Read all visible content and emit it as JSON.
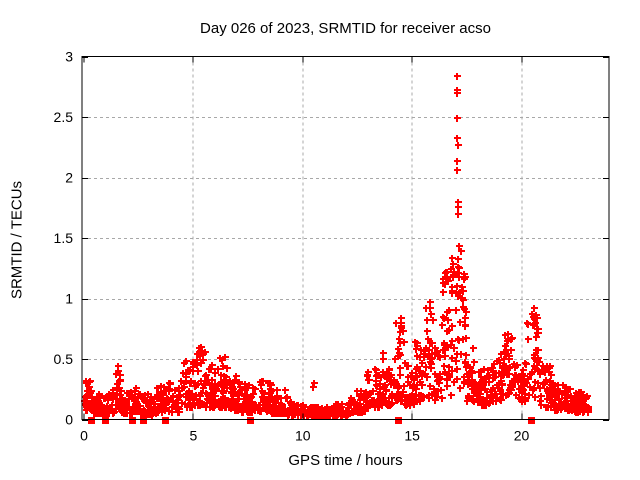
{
  "chart_data": {
    "type": "scatter",
    "title": "Day 026 of 2023, SRMTID for receiver acso",
    "xlabel": "GPS time / hours",
    "ylabel": "SRMTID / TECUs",
    "xlim": [
      0,
      24
    ],
    "ylim": [
      0,
      3
    ],
    "xticks": [
      [
        0,
        "0"
      ],
      [
        5,
        "5"
      ],
      [
        10,
        "10"
      ],
      [
        15,
        "15"
      ],
      [
        20,
        "20"
      ]
    ],
    "yticks": [
      [
        0,
        "0"
      ],
      [
        0.5,
        "0.5"
      ],
      [
        1,
        "1"
      ],
      [
        1.5,
        "1.5"
      ],
      [
        2,
        "2"
      ],
      [
        2.5,
        "2.5"
      ],
      [
        3,
        "3"
      ]
    ],
    "grid": true,
    "legend": "none",
    "marker": "plus-cross",
    "marker_color": "#ff0000",
    "grid_color": "#a8a8a8",
    "axis_color": "#000000",
    "series_name": "SRMTID for receiver acso",
    "point_cloud_segments_format": "[hour_start, hour_end, point_count, value_low, value_high, low_bias_exponent] — dense noisy band read from plot",
    "point_cloud_segments": [
      [
        0.0,
        0.3,
        25,
        0.08,
        0.36,
        1.8
      ],
      [
        0.3,
        1.0,
        52,
        0.05,
        0.28,
        2.0
      ],
      [
        1.0,
        1.45,
        30,
        0.05,
        0.25,
        2.0
      ],
      [
        1.45,
        1.7,
        20,
        0.08,
        0.42,
        1.5
      ],
      [
        1.7,
        2.3,
        40,
        0.05,
        0.24,
        2.0
      ],
      [
        2.3,
        2.6,
        22,
        0.07,
        0.3,
        1.7
      ],
      [
        2.6,
        3.3,
        46,
        0.04,
        0.22,
        2.0
      ],
      [
        3.3,
        4.35,
        65,
        0.06,
        0.32,
        1.9
      ],
      [
        4.35,
        5.1,
        45,
        0.1,
        0.5,
        1.6
      ],
      [
        5.1,
        5.55,
        36,
        0.12,
        0.6,
        1.5
      ],
      [
        5.55,
        6.1,
        40,
        0.1,
        0.5,
        1.6
      ],
      [
        6.1,
        6.6,
        36,
        0.1,
        0.52,
        1.6
      ],
      [
        6.6,
        7.2,
        42,
        0.08,
        0.36,
        1.8
      ],
      [
        7.2,
        7.9,
        48,
        0.06,
        0.3,
        1.9
      ],
      [
        7.9,
        8.6,
        48,
        0.07,
        0.32,
        1.8
      ],
      [
        8.6,
        9.3,
        46,
        0.05,
        0.25,
        2.0
      ],
      [
        9.3,
        10.05,
        50,
        0.04,
        0.15,
        2.0
      ],
      [
        10.05,
        11.2,
        75,
        0.03,
        0.11,
        2.0
      ],
      [
        11.2,
        12.2,
        68,
        0.04,
        0.14,
        2.0
      ],
      [
        12.2,
        12.9,
        48,
        0.06,
        0.24,
        1.8
      ],
      [
        12.9,
        13.6,
        46,
        0.1,
        0.42,
        1.6
      ],
      [
        13.6,
        14.25,
        44,
        0.12,
        0.55,
        1.5
      ],
      [
        14.25,
        14.65,
        30,
        0.15,
        0.82,
        1.3
      ],
      [
        14.65,
        15.1,
        32,
        0.12,
        0.5,
        1.6
      ],
      [
        15.1,
        15.6,
        34,
        0.15,
        0.65,
        1.5
      ],
      [
        15.6,
        16.0,
        28,
        0.18,
        0.95,
        1.3
      ],
      [
        16.0,
        16.35,
        25,
        0.15,
        0.6,
        1.5
      ],
      [
        16.35,
        16.8,
        34,
        0.2,
        1.25,
        1.2
      ],
      [
        16.8,
        17.45,
        50,
        0.25,
        1.4,
        1.1
      ],
      [
        17.45,
        17.9,
        32,
        0.15,
        0.6,
        1.5
      ],
      [
        17.9,
        18.6,
        46,
        0.12,
        0.42,
        1.7
      ],
      [
        18.6,
        19.15,
        38,
        0.15,
        0.55,
        1.5
      ],
      [
        19.15,
        19.6,
        32,
        0.2,
        0.7,
        1.4
      ],
      [
        19.6,
        20.2,
        40,
        0.15,
        0.48,
        1.6
      ],
      [
        20.2,
        20.8,
        40,
        0.18,
        0.9,
        1.3
      ],
      [
        20.8,
        21.5,
        46,
        0.1,
        0.45,
        1.7
      ],
      [
        21.5,
        22.4,
        58,
        0.08,
        0.3,
        1.9
      ],
      [
        22.4,
        23.05,
        50,
        0.06,
        0.26,
        1.9
      ]
    ],
    "outlier_points": [
      [
        17.05,
        2.84
      ],
      [
        17.06,
        2.72
      ],
      [
        17.07,
        2.7
      ],
      [
        17.05,
        2.49
      ],
      [
        17.06,
        2.33
      ],
      [
        17.08,
        2.27
      ],
      [
        17.05,
        2.14
      ],
      [
        17.07,
        2.06
      ],
      [
        17.08,
        1.8
      ],
      [
        17.1,
        1.76
      ],
      [
        17.09,
        1.7
      ],
      [
        17.12,
        1.43
      ],
      [
        17.1,
        1.33
      ],
      [
        17.13,
        1.25
      ],
      [
        17.15,
        1.18
      ],
      [
        17.07,
        1.1
      ],
      [
        17.18,
        1.05
      ],
      [
        16.5,
        1.12
      ],
      [
        16.55,
        1.22
      ],
      [
        16.6,
        1.18
      ],
      [
        15.8,
        0.97
      ],
      [
        15.82,
        0.92
      ],
      [
        14.5,
        0.84
      ],
      [
        14.48,
        0.8
      ],
      [
        20.55,
        0.92
      ],
      [
        20.5,
        0.87
      ],
      [
        20.58,
        0.83
      ],
      [
        19.4,
        0.71
      ],
      [
        10.5,
        0.3
      ],
      [
        10.45,
        0.27
      ],
      [
        5.35,
        0.6
      ],
      [
        5.3,
        0.57
      ],
      [
        6.45,
        0.52
      ],
      [
        1.55,
        0.44
      ],
      [
        1.57,
        0.4
      ]
    ],
    "zero_marker_hours": [
      0.3,
      0.95,
      2.2,
      2.7,
      3.7,
      7.6,
      14.35,
      20.45
    ],
    "zero_marker_shape": "filled-square",
    "seed": 20230026
  }
}
